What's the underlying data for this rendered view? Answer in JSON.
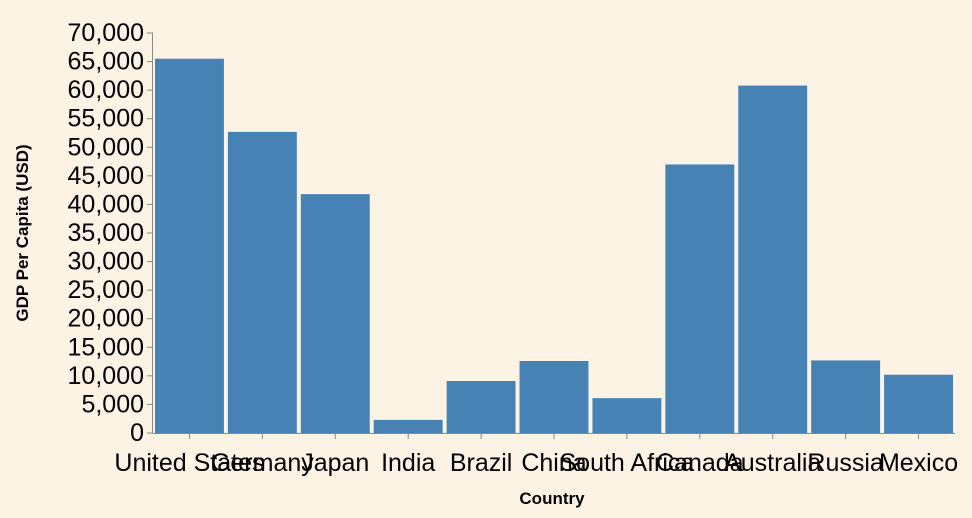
{
  "chart_data": {
    "type": "bar",
    "xlabel": "Country",
    "ylabel": "GDP Per Capita (USD)",
    "categories": [
      "United States",
      "Germany",
      "Japan",
      "India",
      "Brazil",
      "China",
      "South Africa",
      "Canada",
      "Australia",
      "Russia",
      "Mexico"
    ],
    "values": [
      65500,
      52700,
      41800,
      2300,
      9100,
      12600,
      6100,
      47000,
      60800,
      12700,
      10200
    ],
    "ylim": [
      0,
      70000
    ],
    "yticks": [
      0,
      5000,
      10000,
      15000,
      20000,
      25000,
      30000,
      35000,
      40000,
      45000,
      50000,
      55000,
      60000,
      65000,
      70000
    ],
    "ytick_labels": [
      "0",
      "5,000",
      "10,000",
      "15,000",
      "20,000",
      "25,000",
      "30,000",
      "35,000",
      "40,000",
      "45,000",
      "50,000",
      "55,000",
      "60,000",
      "65,000",
      "70,000"
    ],
    "grid": false,
    "bar_color": "#4682b4",
    "axis_color": "#888888",
    "background": "#fdf3e5"
  }
}
